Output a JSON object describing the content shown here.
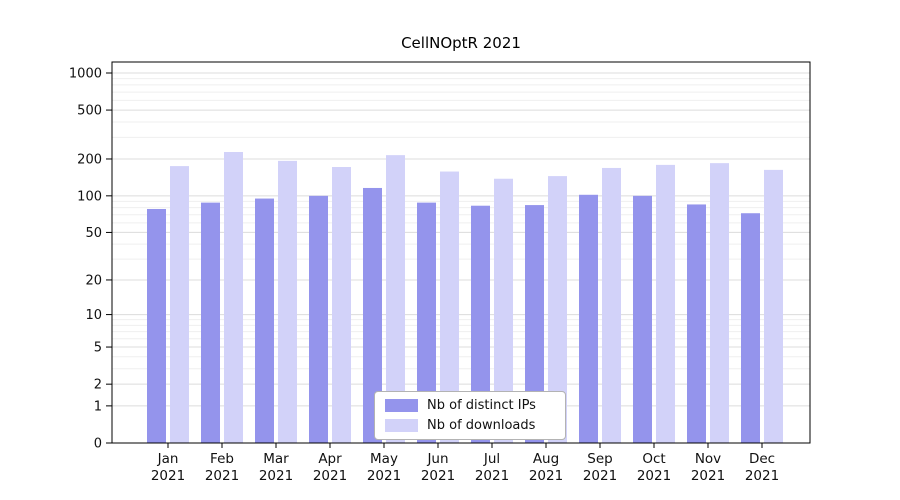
{
  "chart_data": {
    "type": "bar",
    "title": "CellNOptR 2021",
    "categories": [
      "Jan",
      "Feb",
      "Mar",
      "Apr",
      "May",
      "Jun",
      "Jul",
      "Aug",
      "Sep",
      "Oct",
      "Nov",
      "Dec"
    ],
    "year_label": "2021",
    "series": [
      {
        "name": "Nb of distinct IPs",
        "color": "#9494ec",
        "values": [
          78,
          88,
          95,
          100,
          116,
          88,
          83,
          84,
          102,
          100,
          85,
          72
        ]
      },
      {
        "name": "Nb of downloads",
        "color": "#d2d2f9",
        "values": [
          175,
          228,
          193,
          172,
          215,
          158,
          138,
          145,
          169,
          179,
          185,
          163
        ]
      }
    ],
    "y_ticks": [
      0,
      1,
      2,
      5,
      10,
      20,
      50,
      100,
      200,
      500,
      1000
    ],
    "y_scale": "log1p",
    "ylim": [
      0,
      1000
    ],
    "grid": true,
    "legend_position": "bottom-center"
  }
}
